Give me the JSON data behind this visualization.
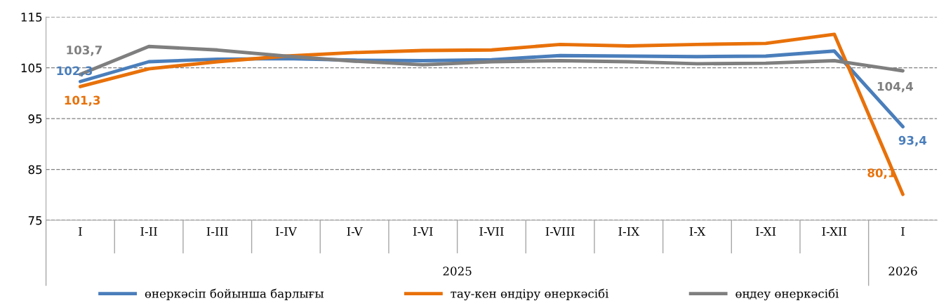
{
  "chart_data": {
    "type": "line",
    "categories": [
      "I",
      "I-II",
      "I-III",
      "I-IV",
      "I-V",
      "I-VI",
      "I-VII",
      "I-VIII",
      "I-IX",
      "I-X",
      "I-XI",
      "I-XII",
      "I"
    ],
    "series": [
      {
        "name": "өнеркәсіп бойынша барлығы",
        "color": "#4a7ebb",
        "values": [
          102.3,
          106.2,
          106.7,
          106.8,
          106.5,
          106.4,
          106.6,
          107.4,
          107.3,
          107.2,
          107.3,
          108.3,
          93.4
        ],
        "value_labels": [
          "102,3",
          null,
          null,
          null,
          null,
          null,
          null,
          null,
          null,
          null,
          null,
          null,
          "93,4"
        ]
      },
      {
        "name": "тау-кен өндіру өнеркәсібі",
        "color": "#e8710a",
        "values": [
          101.3,
          104.8,
          106.2,
          107.3,
          108.0,
          108.4,
          108.5,
          109.6,
          109.3,
          109.6,
          109.8,
          111.6,
          80.1
        ],
        "value_labels": [
          "101,3",
          null,
          null,
          null,
          null,
          null,
          null,
          null,
          null,
          null,
          null,
          null,
          "80,1"
        ]
      },
      {
        "name": "өңдеу өнеркәсібі",
        "color": "#7f7f7f",
        "values": [
          103.7,
          109.2,
          108.5,
          107.3,
          106.3,
          105.6,
          106.2,
          106.4,
          106.2,
          105.8,
          105.9,
          106.4,
          104.4
        ],
        "value_labels": [
          "103,7",
          null,
          null,
          null,
          null,
          null,
          null,
          null,
          null,
          null,
          null,
          null,
          "104,4"
        ]
      }
    ],
    "annotations": [
      "2025",
      "2026"
    ],
    "ylim": [
      75,
      115
    ],
    "yticks": [
      75,
      85,
      95,
      105,
      115
    ],
    "grid": "y",
    "legend": "bottom",
    "marker": "none",
    "line_style": "solid"
  }
}
